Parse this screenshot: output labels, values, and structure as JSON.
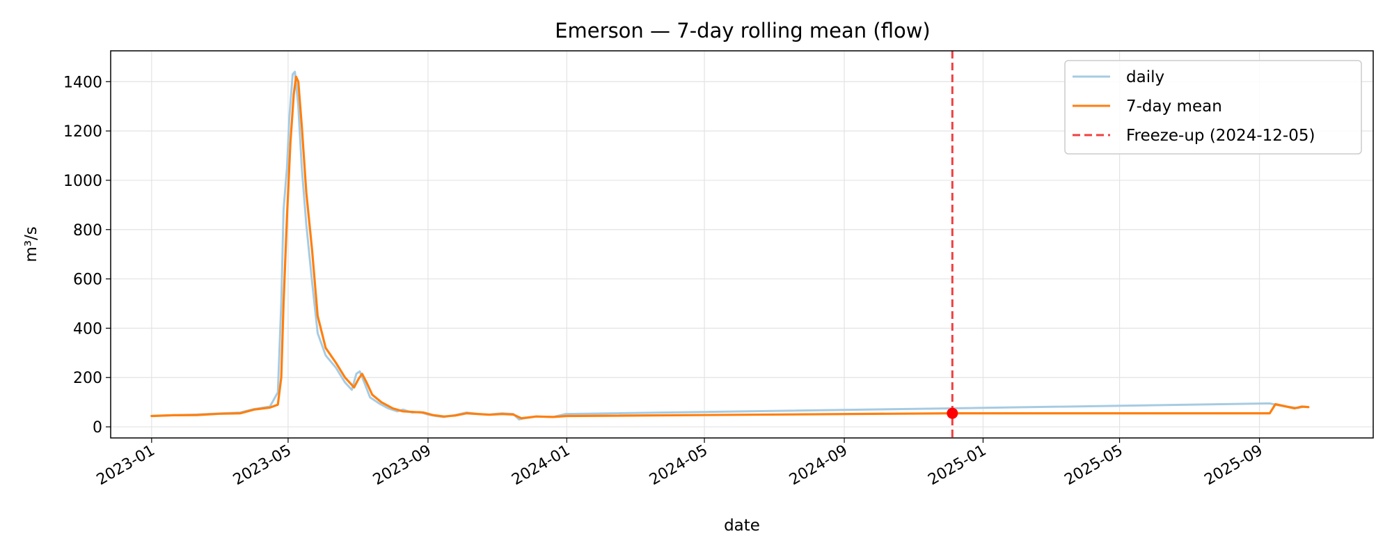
{
  "chart_data": {
    "type": "line",
    "title": "Emerson — 7-day rolling mean (flow)",
    "xlabel": "date",
    "ylabel": "m³/s",
    "xlim": [
      "2022-11-26",
      "2025-12-10"
    ],
    "ylim": [
      -45,
      1525
    ],
    "grid": true,
    "legend_placement": "top-right",
    "x_ticks": [
      "2023-01",
      "2023-05",
      "2023-09",
      "2024-01",
      "2024-05",
      "2024-09",
      "2025-01",
      "2025-05",
      "2025-09"
    ],
    "y_ticks": [
      0,
      200,
      400,
      600,
      800,
      1000,
      1200,
      1400
    ],
    "series": [
      {
        "name": "daily",
        "color": "#a6cbe3",
        "points": [
          [
            "2023-01-01",
            44
          ],
          [
            "2023-01-20",
            47
          ],
          [
            "2023-02-10",
            50
          ],
          [
            "2023-03-01",
            54
          ],
          [
            "2023-03-20",
            58
          ],
          [
            "2023-04-01",
            72
          ],
          [
            "2023-04-15",
            82
          ],
          [
            "2023-04-22",
            140
          ],
          [
            "2023-04-25",
            500
          ],
          [
            "2023-04-27",
            880
          ],
          [
            "2023-04-30",
            1050
          ],
          [
            "2023-05-02",
            1250
          ],
          [
            "2023-05-05",
            1430
          ],
          [
            "2023-05-07",
            1440
          ],
          [
            "2023-05-10",
            1300
          ],
          [
            "2023-05-13",
            1050
          ],
          [
            "2023-05-17",
            820
          ],
          [
            "2023-05-22",
            590
          ],
          [
            "2023-05-27",
            380
          ],
          [
            "2023-06-03",
            290
          ],
          [
            "2023-06-12",
            240
          ],
          [
            "2023-06-20",
            180
          ],
          [
            "2023-06-26",
            150
          ],
          [
            "2023-06-30",
            215
          ],
          [
            "2023-07-03",
            225
          ],
          [
            "2023-07-07",
            180
          ],
          [
            "2023-07-12",
            120
          ],
          [
            "2023-07-20",
            95
          ],
          [
            "2023-07-28",
            75
          ],
          [
            "2023-08-05",
            63
          ],
          [
            "2023-08-10",
            70
          ],
          [
            "2023-08-18",
            58
          ],
          [
            "2023-08-25",
            60
          ],
          [
            "2023-09-01",
            50
          ],
          [
            "2023-09-08",
            44
          ],
          [
            "2023-09-15",
            40
          ],
          [
            "2023-09-25",
            48
          ],
          [
            "2023-10-05",
            58
          ],
          [
            "2023-10-15",
            52
          ],
          [
            "2023-10-25",
            50
          ],
          [
            "2023-11-05",
            55
          ],
          [
            "2023-11-15",
            52
          ],
          [
            "2023-11-20",
            30
          ],
          [
            "2023-11-25",
            35
          ],
          [
            "2023-12-05",
            42
          ],
          [
            "2023-12-20",
            40
          ],
          [
            "2023-12-31",
            52
          ],
          [
            "2024-12-05",
            75
          ],
          [
            "2025-09-10",
            95
          ],
          [
            "2025-09-17",
            88
          ],
          [
            "2025-09-25",
            82
          ],
          [
            "2025-10-05",
            76
          ],
          [
            "2025-10-10",
            82
          ],
          [
            "2025-10-14",
            80
          ]
        ]
      },
      {
        "name": "7-day mean",
        "color": "#ff7f0e",
        "points": [
          [
            "2023-01-01",
            44
          ],
          [
            "2023-01-20",
            47
          ],
          [
            "2023-02-10",
            48
          ],
          [
            "2023-03-01",
            53
          ],
          [
            "2023-03-20",
            55
          ],
          [
            "2023-04-01",
            70
          ],
          [
            "2023-04-15",
            78
          ],
          [
            "2023-04-22",
            90
          ],
          [
            "2023-04-25",
            200
          ],
          [
            "2023-04-27",
            500
          ],
          [
            "2023-04-30",
            850
          ],
          [
            "2023-05-03",
            1150
          ],
          [
            "2023-05-06",
            1350
          ],
          [
            "2023-05-08",
            1420
          ],
          [
            "2023-05-10",
            1400
          ],
          [
            "2023-05-13",
            1220
          ],
          [
            "2023-05-17",
            950
          ],
          [
            "2023-05-22",
            720
          ],
          [
            "2023-05-27",
            450
          ],
          [
            "2023-06-03",
            320
          ],
          [
            "2023-06-12",
            260
          ],
          [
            "2023-06-20",
            200
          ],
          [
            "2023-06-28",
            160
          ],
          [
            "2023-07-02",
            195
          ],
          [
            "2023-07-05",
            215
          ],
          [
            "2023-07-09",
            180
          ],
          [
            "2023-07-14",
            130
          ],
          [
            "2023-07-22",
            100
          ],
          [
            "2023-08-01",
            75
          ],
          [
            "2023-08-10",
            63
          ],
          [
            "2023-08-20",
            60
          ],
          [
            "2023-08-28",
            58
          ],
          [
            "2023-09-05",
            48
          ],
          [
            "2023-09-15",
            42
          ],
          [
            "2023-09-25",
            46
          ],
          [
            "2023-10-05",
            55
          ],
          [
            "2023-10-15",
            52
          ],
          [
            "2023-10-25",
            49
          ],
          [
            "2023-11-05",
            52
          ],
          [
            "2023-11-15",
            50
          ],
          [
            "2023-11-22",
            35
          ],
          [
            "2023-11-28",
            38
          ],
          [
            "2023-12-05",
            42
          ],
          [
            "2023-12-20",
            40
          ],
          [
            "2024-01-01",
            44
          ],
          [
            "2024-12-05",
            55
          ],
          [
            "2025-09-10",
            55
          ],
          [
            "2025-09-15",
            92
          ],
          [
            "2025-09-22",
            85
          ],
          [
            "2025-10-02",
            75
          ],
          [
            "2025-10-08",
            82
          ],
          [
            "2025-10-14",
            80
          ]
        ]
      }
    ],
    "freeze_up": {
      "label": "Freeze-up (2024-12-05)",
      "date": "2024-12-05",
      "value": 55,
      "line_color": "#f04040",
      "marker_color": "#ff0000"
    }
  }
}
